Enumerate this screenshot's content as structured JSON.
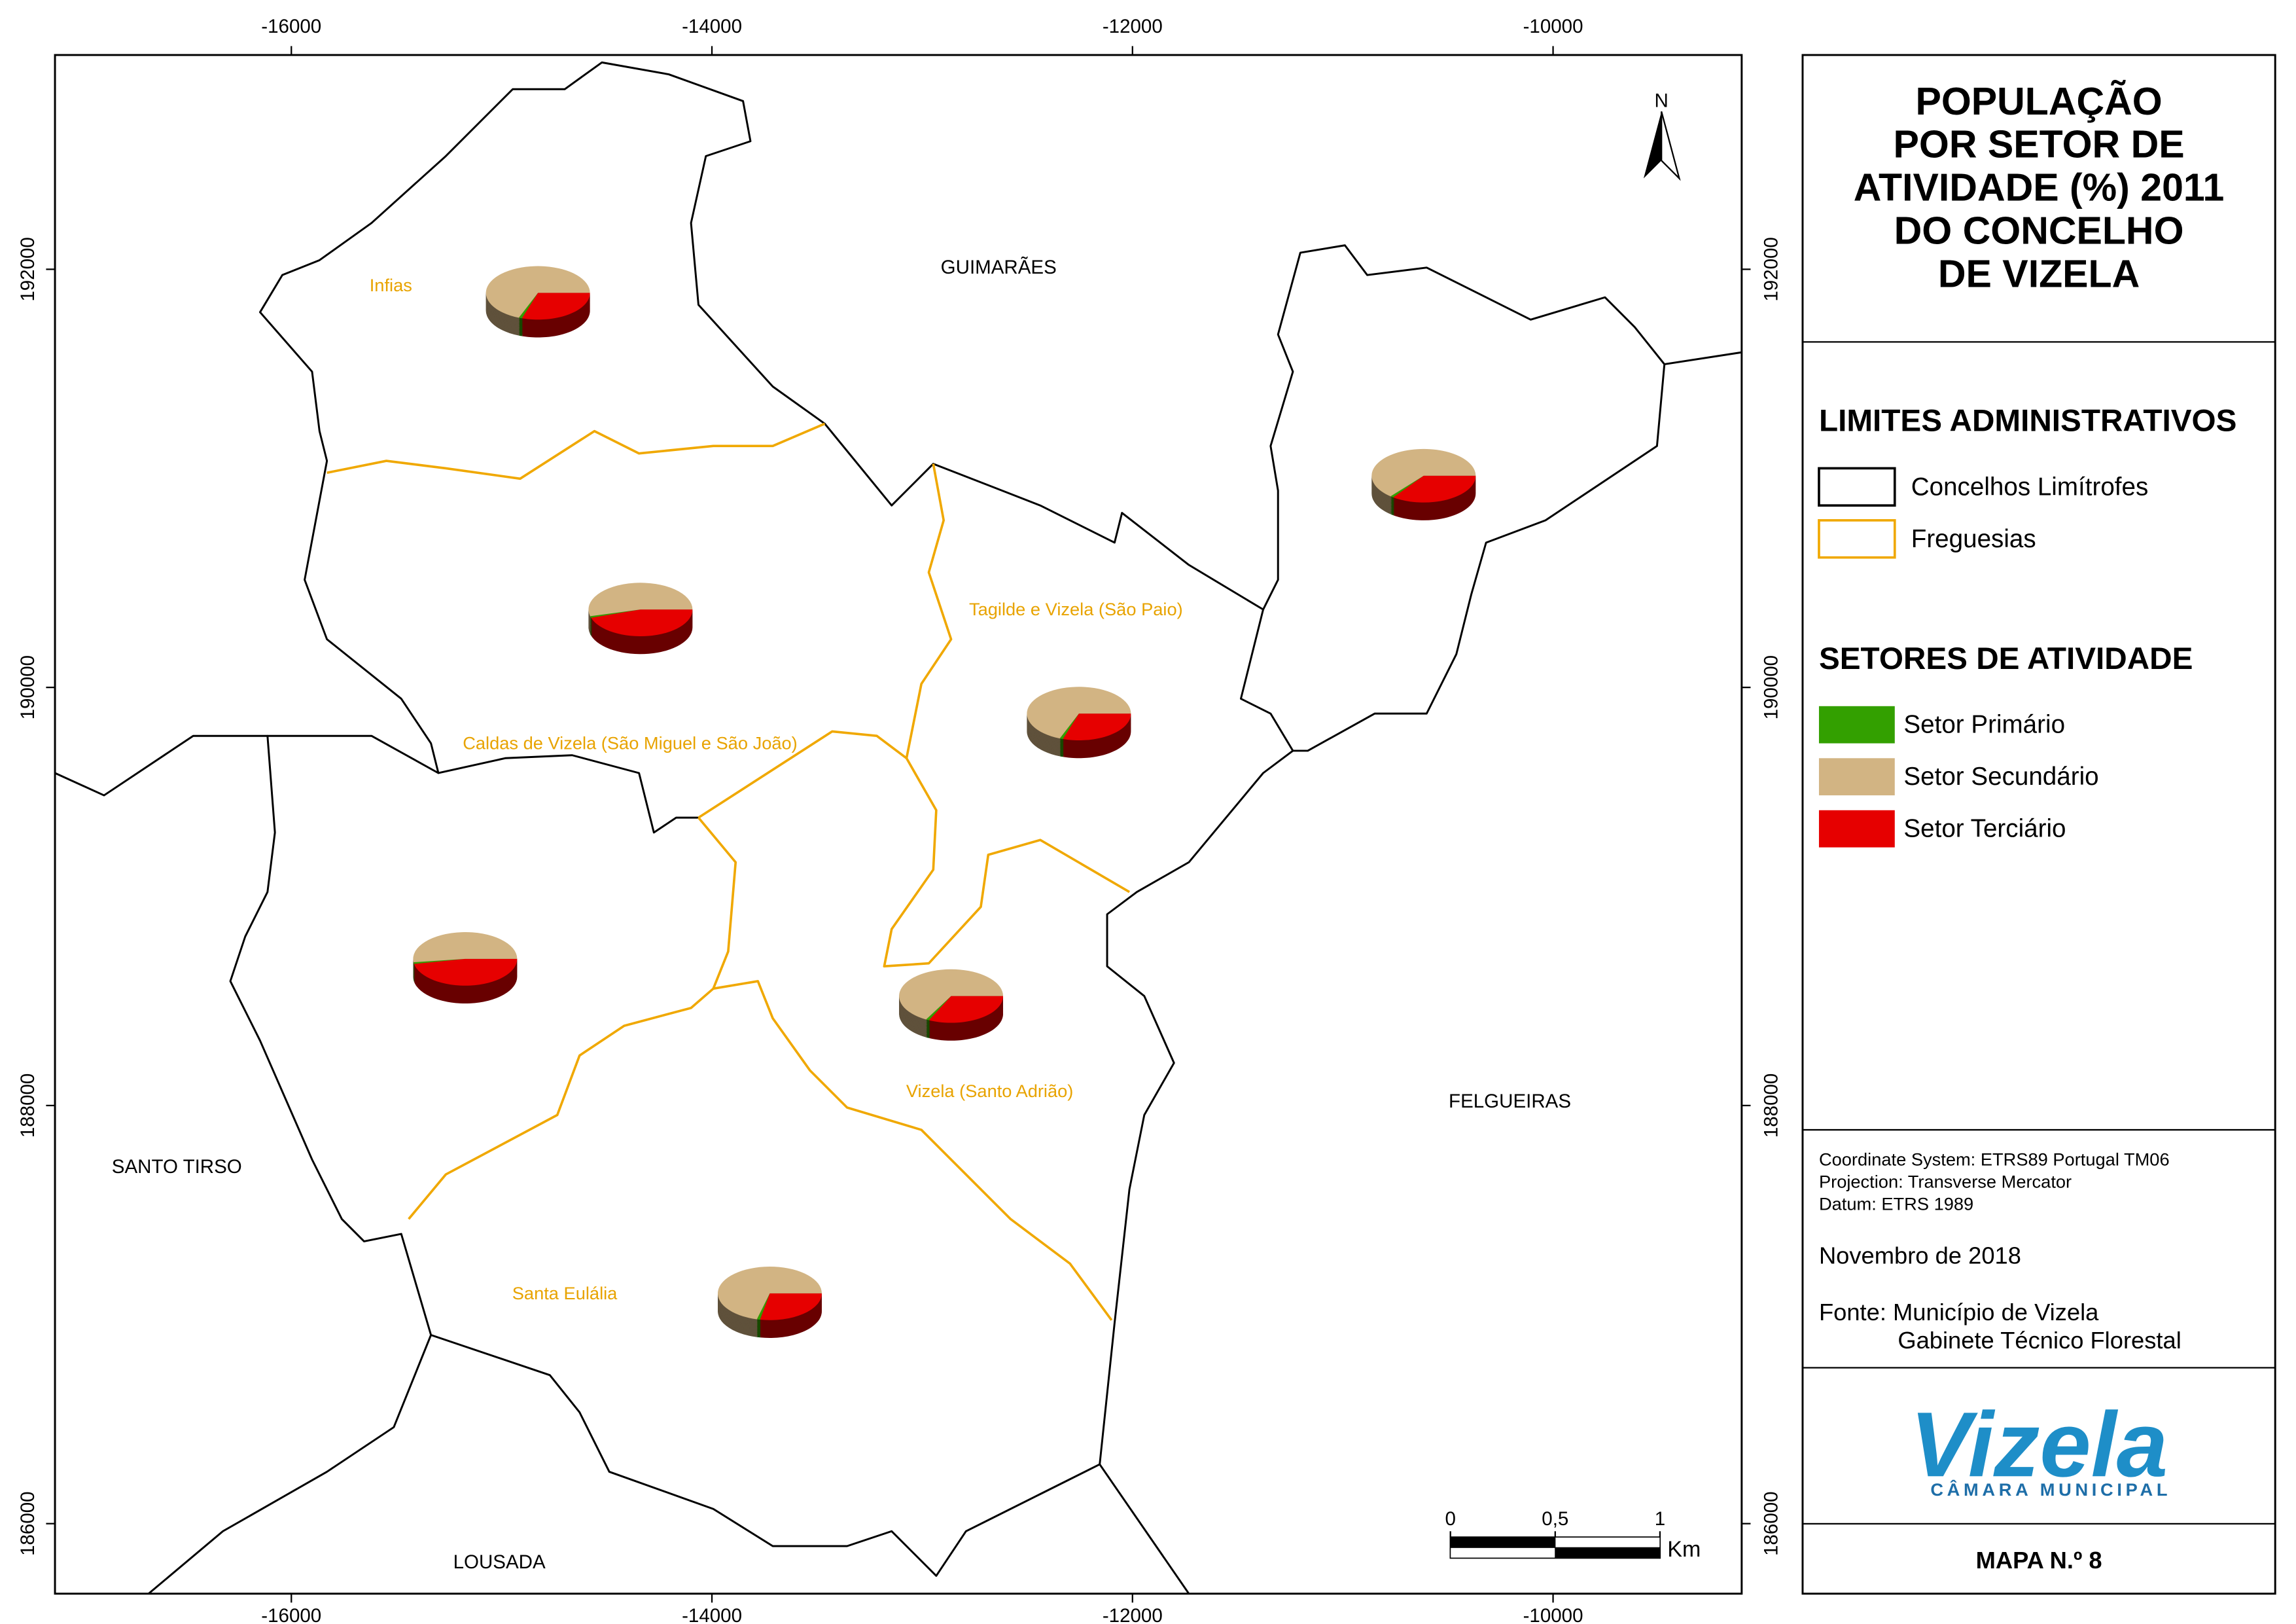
{
  "title": [
    "POPULAÇÃO",
    "POR SETOR DE",
    "ATIVIDADE (%) 2011",
    "DO CONCELHO",
    "DE VIZELA"
  ],
  "legend": {
    "limits_heading": "LIMITES ADMINISTRATIVOS",
    "limits": [
      {
        "label": "Concelhos Limítrofes",
        "color": "#000000"
      },
      {
        "label": "Freguesias",
        "color": "#f0a800"
      }
    ],
    "sectors_heading": "SETORES DE ATIVIDADE",
    "sectors": [
      {
        "label": "Setor Primário",
        "color": "#33a000"
      },
      {
        "label": "Setor Secundário",
        "color": "#d2b483"
      },
      {
        "label": "Setor Terciário",
        "color": "#e60000"
      }
    ]
  },
  "grid": {
    "xlim": [
      -17124,
      -9103
    ],
    "ylim": [
      185665,
      193025
    ],
    "xticks": [
      -16000,
      -14000,
      -12000,
      -10000
    ],
    "yticks": [
      186000,
      188000,
      190000,
      192000
    ]
  },
  "concelhos": [
    "GUIMARÃES",
    "SANTO TIRSO",
    "FELGUEIRAS",
    "LOUSADA"
  ],
  "freguesias": [
    "Infias",
    "Caldas de Vizela (São Miguel e São João)",
    "Tagilde e Vizela (São Paio)",
    "Vizela (Santo Adrião)",
    "Santa Eulália"
  ],
  "pies": [
    [
      1,
      69,
      30
    ],
    [
      1,
      54,
      45
    ],
    [
      1,
      69,
      30
    ],
    [
      1,
      64,
      35
    ],
    [
      1,
      52,
      47
    ],
    [
      1,
      67,
      32
    ],
    [
      1,
      71,
      28
    ]
  ],
  "north": "N",
  "scale": {
    "ticks": [
      0,
      {
        "value": 0.5,
        "label": "0,5"
      },
      1
    ],
    "unit": "Km"
  },
  "info": {
    "coordinate_system": "Coordinate System: ETRS89 Portugal TM06",
    "projection": "Projection: Transverse Mercator",
    "datum": "Datum: ETRS 1989",
    "date": "Novembro de 2018",
    "source": "Fonte: Município de Vizela",
    "source2": "Gabinete Técnico Florestal"
  },
  "logo": {
    "name": "Vizela",
    "subtitle": "CÂMARA MUNICIPAL"
  },
  "footer": "MAPA N.º 8"
}
